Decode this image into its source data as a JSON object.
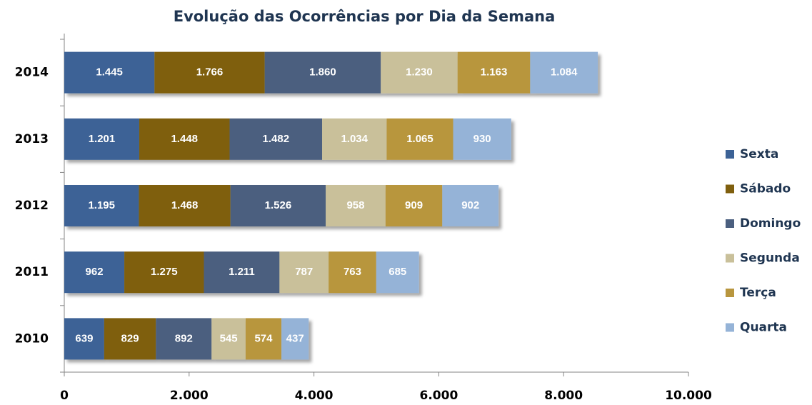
{
  "chart_data": {
    "type": "stacked-bar-horizontal",
    "title": "Evolução das Ocorrências por Dia da Semana",
    "categories": [
      "2014",
      "2013",
      "2012",
      "2011",
      "2010"
    ],
    "series": [
      {
        "name": "Sexta",
        "color": "#3c6296",
        "values": [
          1445,
          1201,
          1195,
          962,
          639
        ],
        "value_labels": [
          "1.445",
          "1.201",
          "1.195",
          "962",
          "639"
        ]
      },
      {
        "name": "Sábado",
        "color": "#7f5f0e",
        "values": [
          1766,
          1448,
          1468,
          1275,
          829
        ],
        "value_labels": [
          "1.766",
          "1.448",
          "1.468",
          "1.275",
          "829"
        ]
      },
      {
        "name": "Domingo",
        "color": "#4b5f7f",
        "values": [
          1860,
          1482,
          1526,
          1211,
          892
        ],
        "value_labels": [
          "1.860",
          "1.482",
          "1.526",
          "1.211",
          "892"
        ]
      },
      {
        "name": "Segunda",
        "color": "#c9c09a",
        "values": [
          1230,
          1034,
          958,
          787,
          545
        ],
        "value_labels": [
          "1.230",
          "1.034",
          "958",
          "787",
          "545"
        ]
      },
      {
        "name": "Terça",
        "color": "#b8963e",
        "values": [
          1163,
          1065,
          909,
          763,
          574
        ],
        "value_labels": [
          "1.163",
          "1.065",
          "909",
          "763",
          "574"
        ]
      },
      {
        "name": "Quarta",
        "color": "#95b3d7",
        "values": [
          1084,
          930,
          902,
          685,
          437
        ],
        "value_labels": [
          "1.084",
          "930",
          "902",
          "685",
          "437"
        ]
      }
    ],
    "xlim": [
      0,
      10000
    ],
    "xticks": [
      0,
      {
        "value": 2000,
        "label": "2.000"
      },
      {
        "value": 4000,
        "label": "4.000"
      },
      {
        "value": 6000,
        "label": "6.000"
      },
      {
        "value": 8000,
        "label": "8.000"
      },
      {
        "value": 10000,
        "label": "10.000"
      }
    ],
    "legend": "right"
  }
}
